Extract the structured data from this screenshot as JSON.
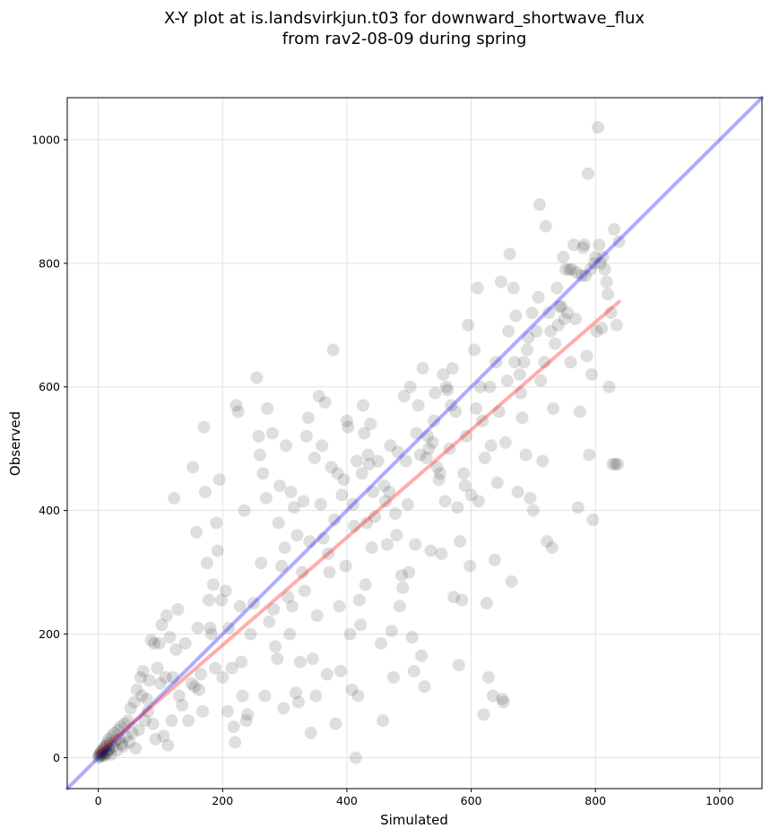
{
  "chart_data": {
    "type": "scatter",
    "title": [
      "X-Y plot at is.landsvirkjun.t03 for downward_shortwave_flux",
      "from rav2-08-09 during spring"
    ],
    "xlabel": "Simulated",
    "ylabel": "Observed",
    "xlim": [
      -50,
      1068
    ],
    "ylim": [
      -50,
      1068
    ],
    "xticks": [
      0,
      200,
      400,
      600,
      800,
      1000
    ],
    "yticks": [
      0,
      200,
      400,
      600,
      800,
      1000
    ],
    "grid": true,
    "colors": {
      "points": "#000000",
      "one_to_one": "#0000ff",
      "regression": "#ff0000"
    },
    "one_to_one_line": {
      "x": [
        -50,
        1068
      ],
      "y": [
        -50,
        1068
      ]
    },
    "regression_line": {
      "x": [
        0,
        838
      ],
      "y": [
        8,
        738
      ]
    },
    "points": [
      [
        0,
        0
      ],
      [
        1,
        3
      ],
      [
        2,
        5
      ],
      [
        3,
        8
      ],
      [
        4,
        2
      ],
      [
        5,
        10
      ],
      [
        6,
        4
      ],
      [
        7,
        12
      ],
      [
        8,
        6
      ],
      [
        9,
        15
      ],
      [
        10,
        3
      ],
      [
        11,
        18
      ],
      [
        12,
        9
      ],
      [
        13,
        20
      ],
      [
        14,
        7
      ],
      [
        15,
        25
      ],
      [
        16,
        12
      ],
      [
        17,
        30
      ],
      [
        18,
        14
      ],
      [
        19,
        22
      ],
      [
        20,
        5
      ],
      [
        22,
        35
      ],
      [
        24,
        18
      ],
      [
        26,
        40
      ],
      [
        28,
        28
      ],
      [
        30,
        12
      ],
      [
        32,
        45
      ],
      [
        34,
        30
      ],
      [
        36,
        50
      ],
      [
        38,
        22
      ],
      [
        40,
        18
      ],
      [
        42,
        55
      ],
      [
        45,
        35
      ],
      [
        48,
        60
      ],
      [
        50,
        25
      ],
      [
        52,
        80
      ],
      [
        55,
        40
      ],
      [
        58,
        90
      ],
      [
        60,
        15
      ],
      [
        62,
        110
      ],
      [
        65,
        45
      ],
      [
        68,
        130
      ],
      [
        70,
        100
      ],
      [
        72,
        140
      ],
      [
        75,
        60
      ],
      [
        78,
        95
      ],
      [
        80,
        75
      ],
      [
        82,
        125
      ],
      [
        85,
        190
      ],
      [
        88,
        55
      ],
      [
        90,
        185
      ],
      [
        92,
        30
      ],
      [
        95,
        145
      ],
      [
        98,
        185
      ],
      [
        100,
        120
      ],
      [
        102,
        215
      ],
      [
        105,
        35
      ],
      [
        108,
        130
      ],
      [
        110,
        230
      ],
      [
        112,
        20
      ],
      [
        115,
        195
      ],
      [
        118,
        60
      ],
      [
        120,
        130
      ],
      [
        122,
        420
      ],
      [
        125,
        175
      ],
      [
        128,
        240
      ],
      [
        130,
        100
      ],
      [
        135,
        85
      ],
      [
        140,
        185
      ],
      [
        145,
        60
      ],
      [
        150,
        120
      ],
      [
        152,
        470
      ],
      [
        155,
        115
      ],
      [
        158,
        365
      ],
      [
        160,
        210
      ],
      [
        162,
        110
      ],
      [
        165,
        135
      ],
      [
        168,
        75
      ],
      [
        170,
        535
      ],
      [
        172,
        430
      ],
      [
        175,
        315
      ],
      [
        178,
        255
      ],
      [
        180,
        210
      ],
      [
        182,
        200
      ],
      [
        185,
        280
      ],
      [
        188,
        145
      ],
      [
        190,
        380
      ],
      [
        192,
        335
      ],
      [
        195,
        450
      ],
      [
        198,
        255
      ],
      [
        200,
        130
      ],
      [
        205,
        270
      ],
      [
        208,
        75
      ],
      [
        210,
        210
      ],
      [
        215,
        145
      ],
      [
        218,
        50
      ],
      [
        220,
        25
      ],
      [
        222,
        570
      ],
      [
        225,
        560
      ],
      [
        228,
        245
      ],
      [
        230,
        155
      ],
      [
        232,
        100
      ],
      [
        235,
        400
      ],
      [
        238,
        60
      ],
      [
        240,
        70
      ],
      [
        245,
        200
      ],
      [
        250,
        250
      ],
      [
        255,
        615
      ],
      [
        258,
        520
      ],
      [
        260,
        490
      ],
      [
        262,
        315
      ],
      [
        265,
        460
      ],
      [
        268,
        100
      ],
      [
        270,
        420
      ],
      [
        272,
        565
      ],
      [
        275,
        220
      ],
      [
        280,
        525
      ],
      [
        282,
        240
      ],
      [
        285,
        180
      ],
      [
        288,
        160
      ],
      [
        290,
        380
      ],
      [
        292,
        440
      ],
      [
        295,
        310
      ],
      [
        298,
        80
      ],
      [
        300,
        340
      ],
      [
        302,
        505
      ],
      [
        305,
        260
      ],
      [
        308,
        200
      ],
      [
        310,
        430
      ],
      [
        312,
        245
      ],
      [
        315,
        405
      ],
      [
        318,
        105
      ],
      [
        320,
        360
      ],
      [
        322,
        90
      ],
      [
        325,
        155
      ],
      [
        328,
        300
      ],
      [
        330,
        415
      ],
      [
        332,
        270
      ],
      [
        335,
        520
      ],
      [
        338,
        550
      ],
      [
        340,
        350
      ],
      [
        342,
        40
      ],
      [
        345,
        160
      ],
      [
        348,
        485
      ],
      [
        350,
        100
      ],
      [
        352,
        230
      ],
      [
        355,
        585
      ],
      [
        358,
        410
      ],
      [
        360,
        505
      ],
      [
        362,
        355
      ],
      [
        365,
        575
      ],
      [
        368,
        135
      ],
      [
        370,
        330
      ],
      [
        372,
        300
      ],
      [
        375,
        470
      ],
      [
        378,
        660
      ],
      [
        380,
        385
      ],
      [
        382,
        55
      ],
      [
        385,
        460
      ],
      [
        388,
        245
      ],
      [
        390,
        140
      ],
      [
        392,
        425
      ],
      [
        395,
        450
      ],
      [
        398,
        310
      ],
      [
        400,
        545
      ],
      [
        402,
        535
      ],
      [
        405,
        200
      ],
      [
        408,
        110
      ],
      [
        410,
        410
      ],
      [
        412,
        375
      ],
      [
        414,
        0
      ],
      [
        416,
        480
      ],
      [
        418,
        100
      ],
      [
        420,
        255
      ],
      [
        422,
        215
      ],
      [
        424,
        460
      ],
      [
        426,
        570
      ],
      [
        428,
        525
      ],
      [
        430,
        280
      ],
      [
        432,
        380
      ],
      [
        434,
        490
      ],
      [
        436,
        475
      ],
      [
        438,
        540
      ],
      [
        440,
        340
      ],
      [
        442,
        430
      ],
      [
        445,
        390
      ],
      [
        450,
        480
      ],
      [
        455,
        185
      ],
      [
        458,
        60
      ],
      [
        460,
        440
      ],
      [
        462,
        415
      ],
      [
        465,
        345
      ],
      [
        468,
        430
      ],
      [
        470,
        505
      ],
      [
        472,
        205
      ],
      [
        475,
        130
      ],
      [
        478,
        395
      ],
      [
        480,
        360
      ],
      [
        482,
        495
      ],
      [
        485,
        245
      ],
      [
        488,
        295
      ],
      [
        490,
        275
      ],
      [
        492,
        585
      ],
      [
        495,
        480
      ],
      [
        498,
        410
      ],
      [
        500,
        300
      ],
      [
        502,
        600
      ],
      [
        505,
        195
      ],
      [
        508,
        140
      ],
      [
        510,
        345
      ],
      [
        512,
        525
      ],
      [
        515,
        570
      ],
      [
        518,
        490
      ],
      [
        520,
        165
      ],
      [
        522,
        630
      ],
      [
        525,
        115
      ],
      [
        528,
        485
      ],
      [
        530,
        520
      ],
      [
        532,
        500
      ],
      [
        535,
        335
      ],
      [
        538,
        510
      ],
      [
        540,
        545
      ],
      [
        542,
        590
      ],
      [
        545,
        470
      ],
      [
        548,
        450
      ],
      [
        550,
        460
      ],
      [
        552,
        330
      ],
      [
        555,
        620
      ],
      [
        558,
        415
      ],
      [
        560,
        600
      ],
      [
        562,
        595
      ],
      [
        565,
        500
      ],
      [
        568,
        570
      ],
      [
        570,
        630
      ],
      [
        572,
        260
      ],
      [
        575,
        560
      ],
      [
        578,
        405
      ],
      [
        580,
        150
      ],
      [
        582,
        350
      ],
      [
        585,
        255
      ],
      [
        588,
        460
      ],
      [
        590,
        440
      ],
      [
        592,
        520
      ],
      [
        595,
        700
      ],
      [
        598,
        310
      ],
      [
        600,
        425
      ],
      [
        605,
        660
      ],
      [
        608,
        565
      ],
      [
        610,
        760
      ],
      [
        612,
        415
      ],
      [
        615,
        600
      ],
      [
        618,
        545
      ],
      [
        620,
        70
      ],
      [
        622,
        485
      ],
      [
        625,
        250
      ],
      [
        628,
        130
      ],
      [
        630,
        600
      ],
      [
        632,
        505
      ],
      [
        635,
        100
      ],
      [
        638,
        320
      ],
      [
        640,
        640
      ],
      [
        642,
        445
      ],
      [
        645,
        560
      ],
      [
        648,
        770
      ],
      [
        650,
        95
      ],
      [
        652,
        90
      ],
      [
        655,
        510
      ],
      [
        658,
        610
      ],
      [
        660,
        690
      ],
      [
        662,
        815
      ],
      [
        665,
        285
      ],
      [
        668,
        760
      ],
      [
        670,
        640
      ],
      [
        672,
        715
      ],
      [
        675,
        430
      ],
      [
        678,
        620
      ],
      [
        680,
        590
      ],
      [
        682,
        550
      ],
      [
        685,
        640
      ],
      [
        688,
        490
      ],
      [
        690,
        660
      ],
      [
        692,
        680
      ],
      [
        695,
        420
      ],
      [
        698,
        720
      ],
      [
        700,
        400
      ],
      [
        705,
        690
      ],
      [
        708,
        745
      ],
      [
        710,
        895
      ],
      [
        712,
        610
      ],
      [
        715,
        480
      ],
      [
        718,
        640
      ],
      [
        720,
        860
      ],
      [
        722,
        350
      ],
      [
        725,
        720
      ],
      [
        728,
        690
      ],
      [
        730,
        340
      ],
      [
        732,
        565
      ],
      [
        735,
        670
      ],
      [
        738,
        760
      ],
      [
        740,
        700
      ],
      [
        742,
        730
      ],
      [
        745,
        730
      ],
      [
        748,
        810
      ],
      [
        750,
        710
      ],
      [
        752,
        790
      ],
      [
        755,
        720
      ],
      [
        758,
        790
      ],
      [
        760,
        640
      ],
      [
        762,
        790
      ],
      [
        765,
        830
      ],
      [
        768,
        710
      ],
      [
        770,
        785
      ],
      [
        772,
        405
      ],
      [
        775,
        560
      ],
      [
        778,
        780
      ],
      [
        780,
        825
      ],
      [
        782,
        830
      ],
      [
        784,
        780
      ],
      [
        786,
        650
      ],
      [
        788,
        945
      ],
      [
        790,
        490
      ],
      [
        792,
        790
      ],
      [
        794,
        620
      ],
      [
        796,
        385
      ],
      [
        798,
        800
      ],
      [
        800,
        810
      ],
      [
        802,
        690
      ],
      [
        804,
        1020
      ],
      [
        806,
        830
      ],
      [
        808,
        800
      ],
      [
        810,
        695
      ],
      [
        812,
        810
      ],
      [
        815,
        790
      ],
      [
        818,
        770
      ],
      [
        820,
        750
      ],
      [
        822,
        600
      ],
      [
        825,
        720
      ],
      [
        828,
        475
      ],
      [
        830,
        855
      ],
      [
        832,
        475
      ],
      [
        834,
        700
      ],
      [
        836,
        475
      ],
      [
        838,
        835
      ]
    ]
  }
}
